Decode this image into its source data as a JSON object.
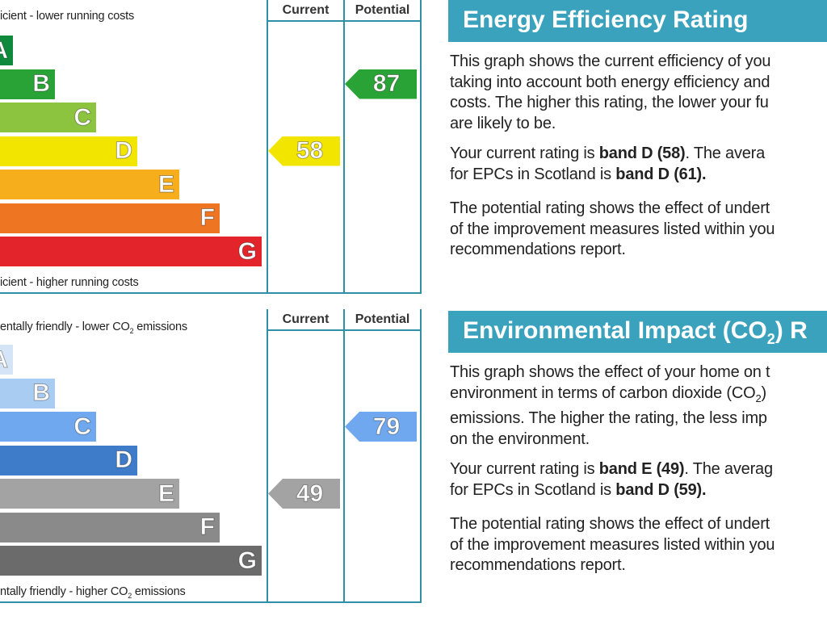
{
  "energy_chart": {
    "col_current": "Current",
    "col_potential": "Potential",
    "top_caption": "icient - lower running costs",
    "bottom_caption": "icient - higher running costs",
    "bands": [
      {
        "letter": "A",
        "color": "#0f8a3c"
      },
      {
        "letter": "B",
        "color": "#2aa336"
      },
      {
        "letter": "C",
        "color": "#8cc43f"
      },
      {
        "letter": "D",
        "color": "#f2e600"
      },
      {
        "letter": "E",
        "color": "#f7ae1d"
      },
      {
        "letter": "F",
        "color": "#ee7522"
      },
      {
        "letter": "G",
        "color": "#e3242b"
      }
    ],
    "current": {
      "value": "58",
      "band": "D",
      "color": "#f2e600"
    },
    "potential": {
      "value": "87",
      "band": "B",
      "color": "#2aa336"
    }
  },
  "env_chart": {
    "col_current": "Current",
    "col_potential": "Potential",
    "top_caption_pre": "entally friendly - lower CO",
    "top_caption_sub": "2",
    "top_caption_post": " emissions",
    "bottom_caption_pre": "ntally friendly - higher CO",
    "bottom_caption_sub": "2",
    "bottom_caption_post": " emissions",
    "bands": [
      {
        "letter": "A",
        "color": "#d5e5f7"
      },
      {
        "letter": "B",
        "color": "#a9cdf2"
      },
      {
        "letter": "C",
        "color": "#6fa8ee"
      },
      {
        "letter": "D",
        "color": "#3e7cc9"
      },
      {
        "letter": "E",
        "color": "#a3a3a3"
      },
      {
        "letter": "F",
        "color": "#8a8a8a"
      },
      {
        "letter": "G",
        "color": "#6b6b6b"
      }
    ],
    "current": {
      "value": "49",
      "band": "E",
      "color": "#a3a3a3"
    },
    "potential": {
      "value": "79",
      "band": "C",
      "color": "#6fa8ee"
    }
  },
  "energy_panel": {
    "title": "Energy Efficiency Rating",
    "p1": [
      "This graph shows the current efficiency of you",
      "taking into account both energy efficiency and",
      "costs. The higher this rating, the lower your fu",
      "are likely to be."
    ],
    "p2_l1_pre": "Your current rating is ",
    "p2_l1_bold": "band D (58)",
    "p2_l1_post": ". The avera",
    "p2_l2_pre": "for EPCs in Scotland is ",
    "p2_l2_bold": "band D (61).",
    "p3": [
      "The potential rating shows the effect of undert",
      "of the improvement measures listed within you",
      "recommendations report."
    ]
  },
  "env_panel": {
    "title_pre": "Environmental Impact (CO",
    "title_sub": "2",
    "title_post": ") R",
    "p1_l1": "This graph shows the effect of your home on t",
    "p1_l2_pre": "environment in terms of carbon dioxide (CO",
    "p1_l2_sub": "2",
    "p1_l2_post": ")",
    "p1_l3": "emissions. The higher the rating, the less imp",
    "p1_l4": "on the environment.",
    "p2_l1_pre": "Your current rating is ",
    "p2_l1_bold": "band E (49)",
    "p2_l1_post": ". The averag",
    "p2_l2_pre": "for EPCs in Scotland is ",
    "p2_l2_bold": "band D (59).",
    "p3": [
      "The potential rating shows the effect of undert",
      "of the improvement measures listed within you",
      "recommendations report."
    ]
  }
}
